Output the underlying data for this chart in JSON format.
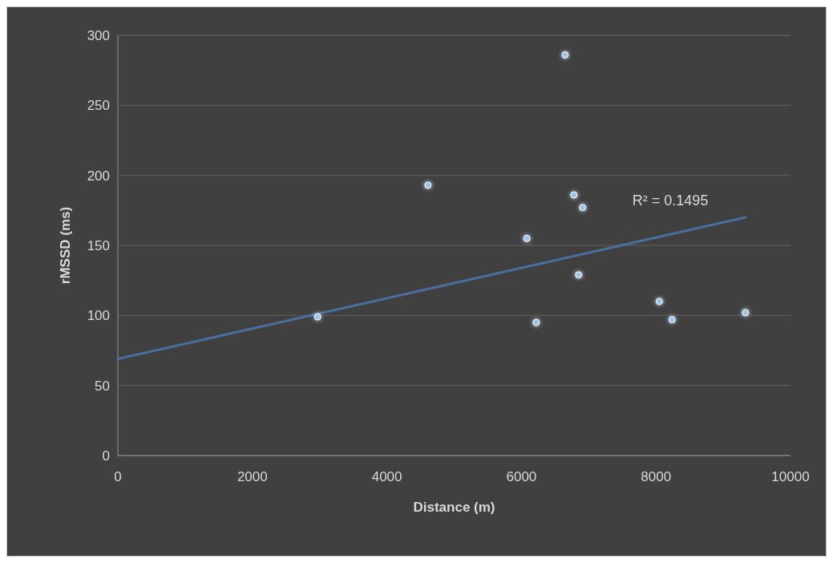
{
  "chart_data": {
    "type": "scatter",
    "xlabel": "Distance (m)",
    "ylabel": "rMSSD (ms)",
    "xlim": [
      0,
      10000
    ],
    "xticks": [
      0,
      2000,
      4000,
      6000,
      8000,
      10000
    ],
    "ylim": [
      0,
      300
    ],
    "yticks": [
      0,
      50,
      100,
      150,
      200,
      250,
      300
    ],
    "grid": "y",
    "annotations": [
      "R² = 0.1495"
    ],
    "series": [
      {
        "color": "#9dc3e6",
        "marker": "circle",
        "x": [
          2970,
          4610,
          6220,
          6080,
          6650,
          6780,
          6910,
          6850,
          8050,
          8240,
          9330
        ],
        "values": [
          99,
          193,
          95,
          155,
          286,
          186,
          177,
          129,
          110,
          97,
          102
        ]
      },
      {
        "type": "line",
        "color": "#4a6f9c",
        "x": [
          0,
          9330
        ],
        "values": [
          69,
          170
        ],
        "marker": "none"
      }
    ]
  }
}
